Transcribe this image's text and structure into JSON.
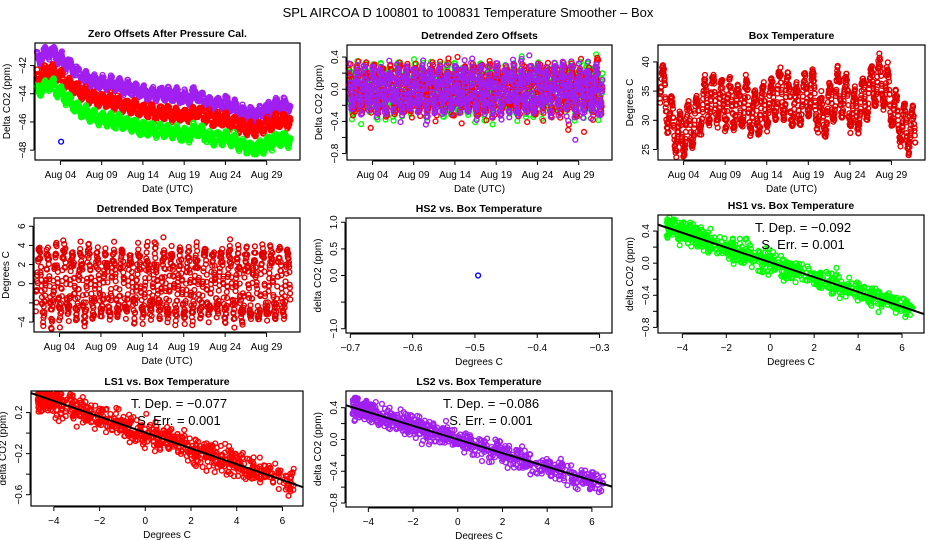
{
  "main_title": "SPL   AIRCOA D   100801 to 100831   Temperature Smoother – Box",
  "chart_data": [
    {
      "id": "zero_offsets",
      "type": "scatter",
      "title": "Zero Offsets After Pressure Cal.",
      "xlabel": "Date (UTC)",
      "ylabel": "Delta CO2 (ppm)",
      "xlim": [
        "2010-07-31T22:00",
        "2010-09-02T01:00"
      ],
      "ylim": [
        -48.7,
        -40.4
      ],
      "x_ticks": [
        {
          "date": "2010-08-04",
          "label": "Aug 04"
        },
        {
          "date": "2010-08-09",
          "label": "Aug 09"
        },
        {
          "date": "2010-08-14",
          "label": "Aug 14"
        },
        {
          "date": "2010-08-19",
          "label": "Aug 19"
        },
        {
          "date": "2010-08-24",
          "label": "Aug 24"
        },
        {
          "date": "2010-08-29",
          "label": "Aug 29"
        }
      ],
      "y_ticks": [
        {
          "value": -42,
          "label": "−42"
        },
        {
          "value": -44,
          "label": "−44"
        },
        {
          "value": -46,
          "label": "−46"
        },
        {
          "value": -48,
          "label": "−48"
        }
      ],
      "series": [
        {
          "color": "#a020f0",
          "daily_mean": [
            -41.5,
            -41.0,
            -41.2,
            -41.8,
            -42.2,
            -42.7,
            -43.0,
            -43.2,
            -43.3,
            -43.3,
            -43.5,
            -43.6,
            -43.8,
            -44.0,
            -44.0,
            -44.0,
            -44.1,
            -44.2,
            -44.4,
            -44.0,
            -44.5,
            -44.8,
            -44.6,
            -44.7,
            -45.2,
            -45.4,
            -45.5,
            -45.3,
            -45.0,
            -44.8,
            -44.8
          ]
        },
        {
          "color": "#ff0000",
          "daily_mean": [
            -42.8,
            -42.3,
            -42.5,
            -43.1,
            -43.5,
            -43.9,
            -44.2,
            -44.4,
            -44.5,
            -44.6,
            -44.8,
            -44.9,
            -45.1,
            -45.2,
            -45.3,
            -45.3,
            -45.4,
            -45.5,
            -45.6,
            -45.2,
            -45.6,
            -45.9,
            -45.8,
            -45.9,
            -46.2,
            -46.4,
            -46.6,
            -46.3,
            -46.1,
            -45.9,
            -45.9
          ]
        },
        {
          "color": "#00ff00",
          "daily_mean": [
            -43.8,
            -43.3,
            -43.6,
            -44.2,
            -44.7,
            -45.2,
            -45.5,
            -45.7,
            -45.8,
            -45.9,
            -46.1,
            -46.2,
            -46.4,
            -46.5,
            -46.6,
            -46.6,
            -46.7,
            -46.8,
            -46.9,
            -46.5,
            -46.9,
            -47.2,
            -47.1,
            -47.2,
            -47.5,
            -47.8,
            -48.0,
            -47.7,
            -47.4,
            -47.2,
            -47.2
          ]
        }
      ],
      "points": [
        {
          "date": "2010-08-04T02:00",
          "value": -47.4,
          "color": "#0000ff"
        }
      ]
    },
    {
      "id": "detrended_offsets",
      "type": "scatter",
      "title": "Detrended Zero Offsets",
      "xlabel": "Date (UTC)",
      "ylabel": "Delta CO2 (ppm)",
      "xlim": [
        "2010-07-31T22:00",
        "2010-09-02T01:00"
      ],
      "ylim": [
        -0.88,
        0.55
      ],
      "x_ticks": [
        {
          "date": "2010-08-04",
          "label": "Aug 04"
        },
        {
          "date": "2010-08-09",
          "label": "Aug 09"
        },
        {
          "date": "2010-08-14",
          "label": "Aug 14"
        },
        {
          "date": "2010-08-19",
          "label": "Aug 19"
        },
        {
          "date": "2010-08-24",
          "label": "Aug 24"
        },
        {
          "date": "2010-08-29",
          "label": "Aug 29"
        }
      ],
      "y_ticks": [
        {
          "value": 0.4,
          "label": "0.4"
        },
        {
          "value": 0.2,
          "label": ""
        },
        {
          "value": 0.0,
          "label": "0.0"
        },
        {
          "value": -0.2,
          "label": ""
        },
        {
          "value": -0.4,
          "label": "−0.4"
        },
        {
          "value": -0.6,
          "label": ""
        },
        {
          "value": -0.8,
          "label": "−0.8"
        }
      ],
      "series": [
        {
          "color": "#00ff00"
        },
        {
          "color": "#ff0000"
        },
        {
          "color": "#a020f0"
        }
      ]
    },
    {
      "id": "box_temp",
      "type": "scatter",
      "title": "Box Temperature",
      "xlabel": "Date (UTC)",
      "ylabel": "Degrees C",
      "xlim": [
        "2010-07-31T22:00",
        "2010-09-02T01:00"
      ],
      "ylim": [
        23.2,
        42.9
      ],
      "x_ticks": [
        {
          "date": "2010-08-04",
          "label": "Aug 04"
        },
        {
          "date": "2010-08-09",
          "label": "Aug 09"
        },
        {
          "date": "2010-08-14",
          "label": "Aug 14"
        },
        {
          "date": "2010-08-19",
          "label": "Aug 19"
        },
        {
          "date": "2010-08-24",
          "label": "Aug 24"
        },
        {
          "date": "2010-08-29",
          "label": "Aug 29"
        }
      ],
      "y_ticks": [
        {
          "value": 40,
          "label": "40"
        },
        {
          "value": 35,
          "label": "35"
        },
        {
          "value": 30,
          "label": "30"
        },
        {
          "value": 25,
          "label": "25"
        }
      ],
      "series": [
        {
          "color": "#e00000",
          "daily_mean": [
            36,
            30,
            27,
            29,
            30,
            33,
            34,
            33,
            33,
            32,
            33,
            31,
            32,
            33,
            35,
            34,
            32,
            34,
            35,
            30,
            32,
            35,
            34,
            31,
            33,
            35,
            37,
            35,
            31,
            29,
            28
          ]
        }
      ]
    },
    {
      "id": "detrended_box",
      "type": "scatter",
      "title": "Detrended Box Temperature",
      "xlabel": "Date (UTC)",
      "ylabel": "Degrees C",
      "xlim": [
        "2010-07-31T22:00",
        "2010-09-02T01:00"
      ],
      "ylim": [
        -5.04,
        6.86
      ],
      "x_ticks": [
        {
          "date": "2010-08-04",
          "label": "Aug 04"
        },
        {
          "date": "2010-08-09",
          "label": "Aug 09"
        },
        {
          "date": "2010-08-14",
          "label": "Aug 14"
        },
        {
          "date": "2010-08-19",
          "label": "Aug 19"
        },
        {
          "date": "2010-08-24",
          "label": "Aug 24"
        },
        {
          "date": "2010-08-29",
          "label": "Aug 29"
        }
      ],
      "y_ticks": [
        {
          "value": 6,
          "label": "6"
        },
        {
          "value": 4,
          "label": "4"
        },
        {
          "value": 2,
          "label": "2"
        },
        {
          "value": 0,
          "label": "0"
        },
        {
          "value": -2,
          "label": ""
        },
        {
          "value": -4,
          "label": "−4"
        }
      ],
      "series": [
        {
          "color": "#e00000"
        }
      ]
    },
    {
      "id": "hs2",
      "type": "scatter",
      "title": "HS2 vs. Box Temperature",
      "xlabel": "Degrees C",
      "ylabel": "delta CO2 (ppm)",
      "xlim": [
        -0.707,
        -0.28
      ],
      "ylim": [
        -1.08,
        1.08
      ],
      "x_ticks": [
        {
          "value": -0.7,
          "label": "−0.7"
        },
        {
          "value": -0.6,
          "label": "−0.6"
        },
        {
          "value": -0.5,
          "label": "−0.5"
        },
        {
          "value": -0.4,
          "label": "−0.4"
        },
        {
          "value": -0.3,
          "label": "−0.3"
        }
      ],
      "y_ticks": [
        {
          "value": 1.0,
          "label": "1.0"
        },
        {
          "value": 0.5,
          "label": "0.5"
        },
        {
          "value": 0.0,
          "label": "0.0"
        },
        {
          "value": -0.5,
          "label": ""
        },
        {
          "value": -1.0,
          "label": "−1.0"
        }
      ],
      "points": [
        {
          "x": -0.495,
          "y": 0.0,
          "color": "#0000ff"
        }
      ]
    },
    {
      "id": "hs1",
      "type": "scatter",
      "title": "HS1 vs. Box Temperature",
      "xlabel": "Degrees C",
      "ylabel": "delta CO2 (ppm)",
      "xlim": [
        -5.11,
        7.0
      ],
      "ylim": [
        -0.87,
        0.6
      ],
      "x_ticks": [
        {
          "value": -4,
          "label": "−4"
        },
        {
          "value": -2,
          "label": "−2"
        },
        {
          "value": 0,
          "label": "0"
        },
        {
          "value": 2,
          "label": "2"
        },
        {
          "value": 4,
          "label": "4"
        },
        {
          "value": 6,
          "label": "6"
        }
      ],
      "y_ticks": [
        {
          "value": 0.4,
          "label": "0.4"
        },
        {
          "value": 0.2,
          "label": ""
        },
        {
          "value": 0.0,
          "label": "0.0"
        },
        {
          "value": -0.2,
          "label": ""
        },
        {
          "value": -0.4,
          "label": "−0.4"
        },
        {
          "value": -0.6,
          "label": ""
        },
        {
          "value": -0.8,
          "label": "−0.8"
        }
      ],
      "color": "#00ff00",
      "data_x_range": [
        -4.7,
        6.5
      ],
      "fit": {
        "slope": -0.092,
        "intercept": 0.01
      },
      "annotation": [
        "T. Dep. =  −0.092",
        "S. Err. =  0.001"
      ]
    },
    {
      "id": "ls1",
      "type": "scatter",
      "title": "LS1 vs. Box Temperature",
      "xlabel": "Degrees C",
      "ylabel": "delta CO2 (ppm)",
      "xlim": [
        -5.0,
        6.9
      ],
      "ylim": [
        -0.71,
        0.41
      ],
      "x_ticks": [
        {
          "value": -4,
          "label": "−4"
        },
        {
          "value": -2,
          "label": "−2"
        },
        {
          "value": 0,
          "label": "0"
        },
        {
          "value": 2,
          "label": "2"
        },
        {
          "value": 4,
          "label": "4"
        },
        {
          "value": 6,
          "label": "6"
        }
      ],
      "y_ticks": [
        {
          "value": 0.2,
          "label": "0.2"
        },
        {
          "value": 0.0,
          "label": ""
        },
        {
          "value": -0.2,
          "label": "−0.2"
        },
        {
          "value": -0.4,
          "label": ""
        },
        {
          "value": -0.6,
          "label": "−0.6"
        }
      ],
      "color": "#ff0000",
      "data_x_range": [
        -4.7,
        6.5
      ],
      "fit": {
        "slope": -0.077,
        "intercept": 0.005
      },
      "annotation": [
        "T. Dep. =  −0.077",
        "S. Err. =  0.001"
      ]
    },
    {
      "id": "ls2",
      "type": "scatter",
      "title": "LS2 vs. Box Temperature",
      "xlabel": "Degrees C",
      "ylabel": "delta CO2 (ppm)",
      "xlim": [
        -5.0,
        6.9
      ],
      "ylim": [
        -0.85,
        0.61
      ],
      "x_ticks": [
        {
          "value": -4,
          "label": "−4"
        },
        {
          "value": -2,
          "label": "−2"
        },
        {
          "value": 0,
          "label": "0"
        },
        {
          "value": 2,
          "label": "2"
        },
        {
          "value": 4,
          "label": "4"
        },
        {
          "value": 6,
          "label": "6"
        }
      ],
      "y_ticks": [
        {
          "value": 0.4,
          "label": "0.4"
        },
        {
          "value": 0.2,
          "label": ""
        },
        {
          "value": 0.0,
          "label": "0.0"
        },
        {
          "value": -0.2,
          "label": ""
        },
        {
          "value": -0.4,
          "label": "−0.4"
        },
        {
          "value": -0.6,
          "label": ""
        },
        {
          "value": -0.8,
          "label": "−0.8"
        }
      ],
      "color": "#a020f0",
      "data_x_range": [
        -4.7,
        6.5
      ],
      "fit": {
        "slope": -0.086,
        "intercept": 0.0
      },
      "annotation": [
        "T. Dep. =  −0.086",
        "S. Err. =  0.001"
      ]
    }
  ]
}
